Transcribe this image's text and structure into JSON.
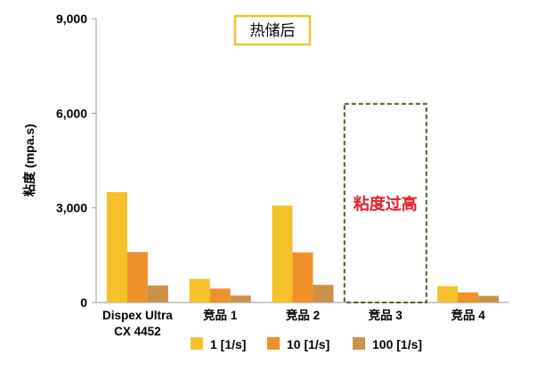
{
  "chart_data": {
    "type": "bar",
    "title": "热储后",
    "ylabel": "粘度 (mpa.s)",
    "xlabel": "",
    "ylim": [
      0,
      9000
    ],
    "yticks": [
      0,
      3000,
      6000,
      9000
    ],
    "ytick_labels": [
      "0",
      "3,000",
      "6,000",
      "9,000"
    ],
    "categories": [
      [
        "Dispex Ultra",
        "CX 4452"
      ],
      [
        "竞品 1"
      ],
      [
        "竞品 2"
      ],
      [
        "竞品 3"
      ],
      [
        "竞品 4"
      ]
    ],
    "series": [
      {
        "name": "1 [1/s]",
        "color": "#F5C12A",
        "values": [
          3500,
          750,
          3070,
          null,
          520
        ]
      },
      {
        "name": "10 [1/s]",
        "color": "#F0902A",
        "values": [
          1600,
          440,
          1590,
          null,
          320
        ]
      },
      {
        "name": "100 [1/s]",
        "color": "#C9924A",
        "values": [
          540,
          220,
          560,
          null,
          210
        ]
      }
    ],
    "annotation": {
      "category_index": 3,
      "text": "粘度过高",
      "text_color": "#E0202A",
      "box_color": "#5A5A1E",
      "box_level": 6300
    },
    "title_box_color": "#E8C43A",
    "legend_position": "bottom",
    "grid": false
  }
}
